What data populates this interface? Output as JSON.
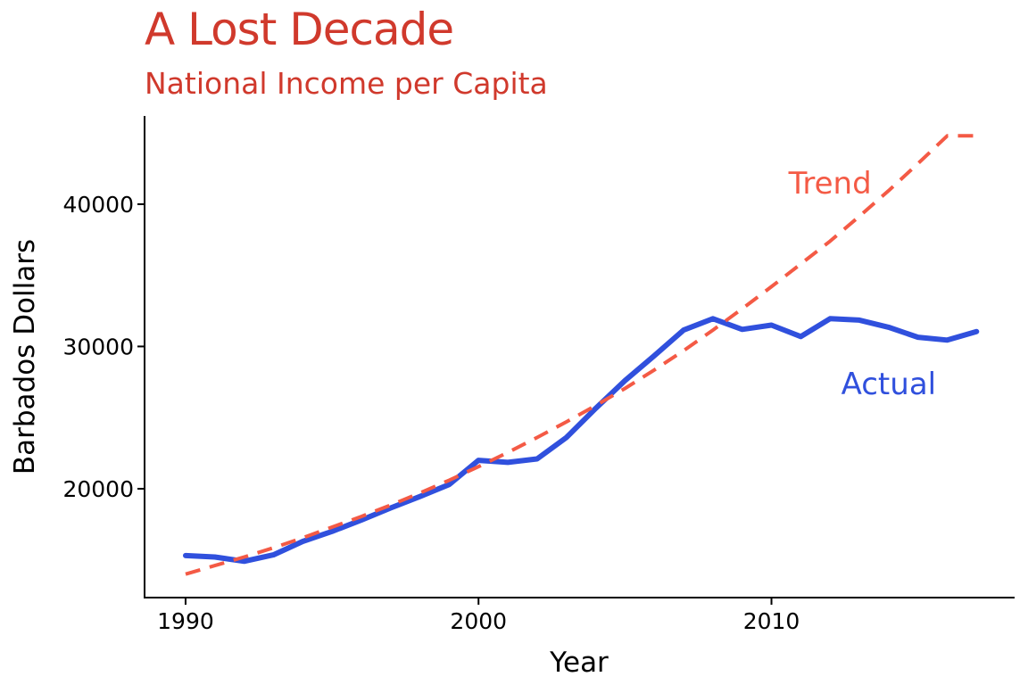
{
  "chart_data": {
    "type": "line",
    "title": "A Lost Decade",
    "subtitle": "National Income per Capita",
    "xlabel": "Year",
    "ylabel": "Barbados Dollars",
    "xlim": [
      1988.6,
      2018.3
    ],
    "ylim": [
      12350,
      46200
    ],
    "xticks": [
      1990,
      2000,
      2010
    ],
    "xtick_labels": [
      "1990",
      "2000",
      "2010"
    ],
    "yticks": [
      20000,
      30000,
      40000
    ],
    "ytick_labels": [
      "20000",
      "30000",
      "40000"
    ],
    "grid": false,
    "legend": "none",
    "series": [
      {
        "name": "Actual",
        "style": "solid",
        "color": "#3050dd",
        "x": [
          1990,
          1991,
          1992,
          1993,
          1994,
          1995,
          1996,
          1997,
          1998,
          1999,
          2000,
          2001,
          2002,
          2003,
          2004,
          2005,
          2006,
          2007,
          2008,
          2009,
          2010,
          2011,
          2012,
          2013,
          2014,
          2015,
          2016,
          2017
        ],
        "values": [
          15300,
          15200,
          14900,
          15350,
          16300,
          17000,
          17800,
          18650,
          19450,
          20300,
          22000,
          21850,
          22100,
          23600,
          25650,
          27600,
          29350,
          31150,
          31950,
          31200,
          31500,
          30700,
          31950,
          31850,
          31350,
          30650,
          30450,
          31050
        ]
      },
      {
        "name": "Trend",
        "style": "dashed",
        "color": "#f45a45",
        "x": [
          1990,
          1991,
          1992,
          1993,
          1994,
          1995,
          1996,
          1997,
          1998,
          1999,
          2000,
          2001,
          2002,
          2003,
          2004,
          2005,
          2006,
          2007,
          2008,
          2009,
          2010,
          2011,
          2012,
          2013,
          2014,
          2015,
          2016,
          2017
        ],
        "values": [
          14000,
          14600,
          15200,
          15850,
          16550,
          17300,
          18050,
          18850,
          19700,
          20600,
          21550,
          22550,
          23600,
          24700,
          25850,
          27050,
          28350,
          29700,
          31150,
          32650,
          34200,
          35800,
          37400,
          39150,
          40950,
          42850,
          44800,
          44800
        ]
      }
    ],
    "annotations": [
      {
        "text": "Trend",
        "color": "#f45a45",
        "x": 2012.0,
        "y": 41500
      },
      {
        "text": "Actual",
        "color": "#3050dd",
        "x": 2014.0,
        "y": 27400
      }
    ]
  }
}
